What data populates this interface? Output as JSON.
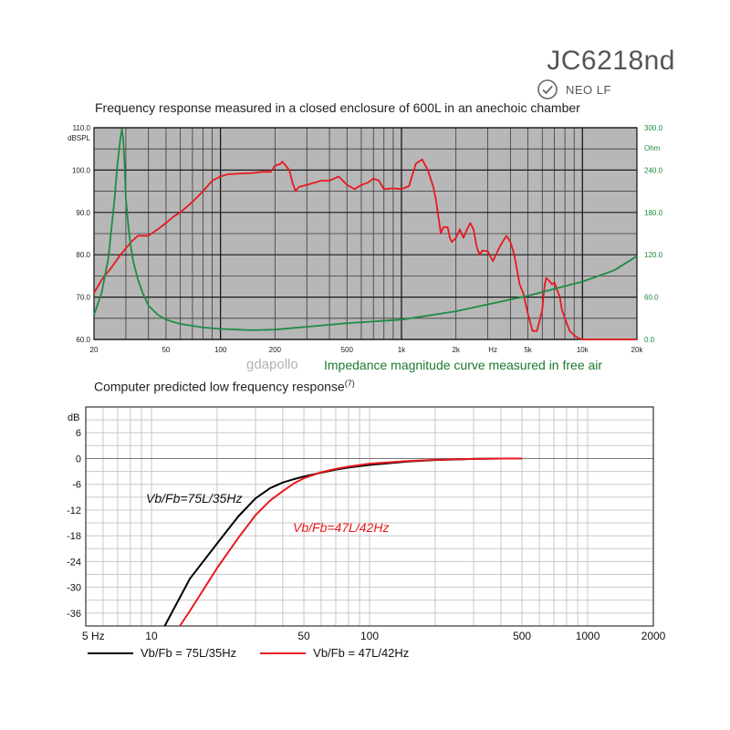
{
  "header": {
    "model": "JC6218nd",
    "badge_label": "NEO LF"
  },
  "watermark": "gdapollo",
  "chart_data": [
    {
      "type": "line",
      "title": "Frequency response measured  in a closed  enclosure of 600L in an anechoic chamber",
      "annotation": "Impedance magnitude curve measured in free air",
      "x_scale": "log",
      "xlim": [
        20,
        20000
      ],
      "x_ticks": [
        20,
        50,
        100,
        200,
        500,
        1000,
        2000,
        5000,
        10000,
        20000
      ],
      "x_tick_labels": [
        "20",
        "50",
        "100",
        "200",
        "500",
        "1k",
        "2k",
        "5k",
        "10k",
        "20k"
      ],
      "x_unit_label": "Hz",
      "y_left": {
        "unit": "dBSPL",
        "ylim": [
          60,
          110
        ],
        "ticks": [
          60,
          70,
          80,
          90,
          100,
          110
        ],
        "tick_labels": [
          "60.0",
          "70.0",
          "80.0",
          "90.0",
          "100.0",
          "110.0"
        ]
      },
      "y_right": {
        "unit": "Ohm",
        "ylim": [
          0,
          300
        ],
        "ticks": [
          0,
          60,
          120,
          180,
          240,
          300
        ],
        "tick_labels": [
          "0.0",
          "60.0",
          "120.0",
          "180.0",
          "240.0",
          "300.0"
        ]
      },
      "grid": true,
      "background": "#b7b7b7",
      "series": [
        {
          "color": "#e8191f",
          "axis": "left",
          "x": [
            20,
            22,
            25,
            28,
            30,
            32,
            35,
            40,
            45,
            50,
            55,
            60,
            70,
            80,
            90,
            100,
            110,
            130,
            150,
            170,
            190,
            200,
            215,
            220,
            230,
            240,
            250,
            260,
            270,
            300,
            330,
            360,
            400,
            450,
            500,
            550,
            600,
            650,
            700,
            750,
            800,
            900,
            1000,
            1100,
            1200,
            1300,
            1400,
            1500,
            1550,
            1650,
            1700,
            1800,
            1850,
            1900,
            2000,
            2100,
            2200,
            2300,
            2400,
            2500,
            2600,
            2700,
            2800,
            3000,
            3200,
            3500,
            3800,
            4000,
            4200,
            4500,
            4700,
            5000,
            5300,
            5600,
            5800,
            6000,
            6100,
            6200,
            6300,
            6500,
            6800,
            7000,
            7200,
            7500,
            7700,
            8000,
            8500,
            9000,
            9500,
            10000,
            10300,
            10600,
            10900,
            11200,
            20000
          ],
          "y": [
            71,
            74,
            77,
            80,
            81.5,
            83,
            84.5,
            84.5,
            86,
            87.5,
            89,
            90,
            92.5,
            95,
            97.5,
            98.5,
            99,
            99.2,
            99.3,
            99.6,
            99.6,
            101,
            101.5,
            102,
            101,
            100,
            97,
            95,
            96,
            96.5,
            97,
            97.5,
            97.5,
            98.5,
            96.5,
            95.5,
            96.5,
            97,
            98,
            97.5,
            95.5,
            95.7,
            95.5,
            96.2,
            101.5,
            102.5,
            100,
            96,
            93,
            85,
            86.5,
            86.5,
            84,
            83,
            84,
            86,
            84,
            86,
            87.5,
            86,
            82,
            80,
            81,
            80.8,
            78.5,
            82,
            84.5,
            83,
            80,
            73,
            71,
            66,
            62,
            62,
            64.5,
            67,
            70.5,
            73,
            74.5,
            74,
            73,
            73.5,
            72,
            70,
            67,
            65,
            62,
            61,
            60.3,
            60,
            60,
            60,
            60,
            60,
            60
          ]
        },
        {
          "color": "#1e8c45",
          "axis": "right",
          "x": [
            20,
            22,
            24,
            26,
            27,
            28,
            28.5,
            29,
            29.5,
            30,
            31,
            32,
            33,
            35,
            37,
            40,
            45,
            50,
            60,
            80,
            100,
            150,
            200,
            300,
            500,
            1000,
            2000,
            5000,
            10000,
            15000,
            20000
          ],
          "y": [
            35,
            65,
            115,
            200,
            250,
            285,
            298,
            285,
            250,
            200,
            160,
            130,
            110,
            85,
            67,
            48,
            35,
            28,
            22,
            17,
            15,
            13,
            14,
            18,
            23,
            28,
            40,
            62,
            82,
            98,
            118
          ]
        }
      ]
    },
    {
      "type": "line",
      "title": "Computer predicted low frequency response",
      "title_sup": "(7)",
      "x_scale": "log",
      "xlim": [
        5,
        2000
      ],
      "x_ticks": [
        5,
        10,
        50,
        100,
        500,
        1000,
        2000
      ],
      "x_tick_labels": [
        "5 Hz",
        "10",
        "50",
        "100",
        "500",
        "1000",
        "2000"
      ],
      "y_unit": "dB",
      "ylim": [
        -39,
        12
      ],
      "y_ticks": [
        6,
        0,
        -6,
        -12,
        -18,
        -24,
        -30,
        -36
      ],
      "y_tick_labels": [
        "6",
        "0",
        "-6",
        "-12",
        "-18",
        "-24",
        "-30",
        "-36"
      ],
      "grid": true,
      "series": [
        {
          "name": "Vb/Fb = 75L/35Hz",
          "annotation": "Vb/Fb=75L/35Hz",
          "color": "#000000",
          "x": [
            11.5,
            15,
            20,
            25,
            30,
            35,
            40,
            45,
            50,
            60,
            70,
            80,
            100,
            150,
            200,
            300,
            400,
            500
          ],
          "y": [
            -39,
            -28,
            -19.8,
            -13.5,
            -9.3,
            -6.9,
            -5.6,
            -4.8,
            -4.2,
            -3.3,
            -2.6,
            -2.1,
            -1.5,
            -0.7,
            -0.35,
            -0.1,
            0,
            0
          ]
        },
        {
          "name": "Vb/Fb = 47L/42Hz",
          "annotation": "Vb/Fb=47L/42Hz",
          "color": "#e8191f",
          "x": [
            13.5,
            15,
            20,
            25,
            30,
            35,
            40,
            45,
            50,
            60,
            70,
            80,
            100,
            150,
            200,
            300,
            400,
            500
          ],
          "y": [
            -39,
            -35.5,
            -25.5,
            -18.5,
            -13.2,
            -9.8,
            -7.6,
            -5.8,
            -4.6,
            -3.2,
            -2.4,
            -1.9,
            -1.2,
            -0.6,
            -0.3,
            -0.1,
            0,
            0
          ]
        }
      ],
      "legend_position": "bottom-left"
    }
  ]
}
